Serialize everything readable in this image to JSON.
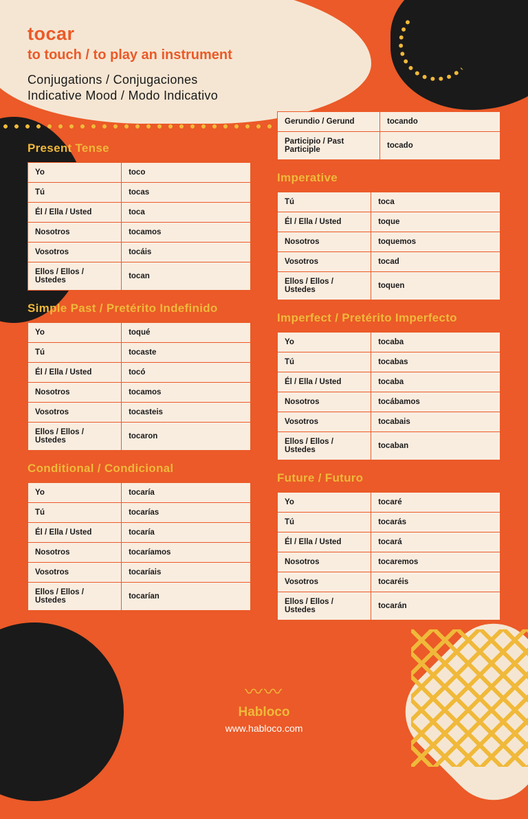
{
  "colors": {
    "bg_orange": "#eb5a28",
    "cream": "#f5e6d3",
    "table_bg": "#f9ede0",
    "dark": "#1a1a1a",
    "accent_yellow": "#f0b93a",
    "white": "#ffffff"
  },
  "header": {
    "verb": "tocar",
    "definition": "to touch / to play an instrument",
    "line1": "Conjugations / Conjugaciones",
    "line2": "Indicative Mood / Modo Indicativo"
  },
  "pronouns": [
    "Yo",
    "Tú",
    "Él / Ella / Usted",
    "Nosotros",
    "Vosotros",
    "Ellos / Ellos / Ustedes"
  ],
  "imperative_pronouns": [
    "Tú",
    "Él / Ella / Usted",
    "Nosotros",
    "Vosotros",
    "Ellos / Ellos / Ustedes"
  ],
  "nonfinite": {
    "rows": [
      [
        "Gerundio / Gerund",
        "tocando"
      ],
      [
        "Participio / Past Participle",
        "tocado"
      ]
    ]
  },
  "tenses": {
    "present": {
      "title": "Present Tense",
      "forms": [
        "toco",
        "tocas",
        "toca",
        "tocamos",
        "tocáis",
        "tocan"
      ]
    },
    "imperative": {
      "title": "Imperative",
      "forms": [
        "toca",
        "toque",
        "toquemos",
        "tocad",
        "toquen"
      ]
    },
    "simple_past": {
      "title": "Simple Past / Pretérito Indefinido",
      "forms": [
        "toqué",
        "tocaste",
        "tocó",
        "tocamos",
        "tocasteis",
        "tocaron"
      ]
    },
    "imperfect": {
      "title": "Imperfect / Pretérito Imperfecto",
      "forms": [
        "tocaba",
        "tocabas",
        "tocaba",
        "tocábamos",
        "tocabais",
        "tocaban"
      ]
    },
    "conditional": {
      "title": "Conditional / Condicional",
      "forms": [
        "tocaría",
        "tocarías",
        "tocaría",
        "tocaríamos",
        "tocaríais",
        "tocarían"
      ]
    },
    "future": {
      "title": "Future / Futuro",
      "forms": [
        "tocaré",
        "tocarás",
        "tocará",
        "tocaremos",
        "tocaréis",
        "tocarán"
      ]
    }
  },
  "footer": {
    "brand": "Habloco",
    "url": "www.habloco.com"
  }
}
